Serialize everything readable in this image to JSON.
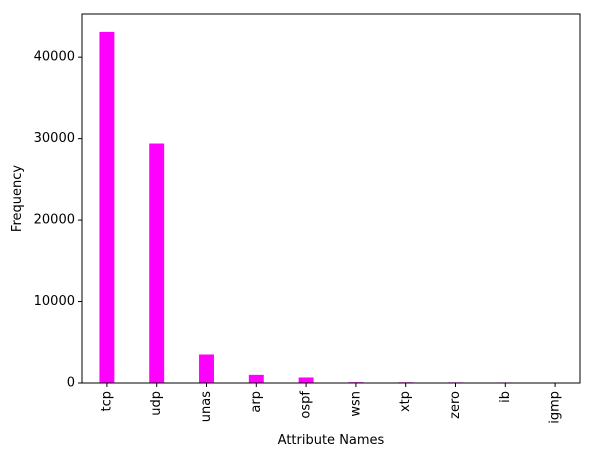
{
  "chart_data": {
    "type": "bar",
    "title": "",
    "xlabel": "Attribute Names",
    "ylabel": "Frequency",
    "categories": [
      "tcp",
      "udp",
      "unas",
      "arp",
      "ospf",
      "wsn",
      "xtp",
      "zero",
      "ib",
      "igmp"
    ],
    "values": [
      43100,
      29400,
      3500,
      1000,
      680,
      100,
      90,
      80,
      70,
      60
    ],
    "ylim": [
      0,
      45300
    ],
    "yticks": [
      0,
      10000,
      20000,
      30000,
      40000
    ],
    "ytick_labels": [
      "0",
      "10000",
      "20000",
      "30000",
      "40000"
    ],
    "bar_color": "#ff00ff",
    "grid": false,
    "legend": "none"
  }
}
